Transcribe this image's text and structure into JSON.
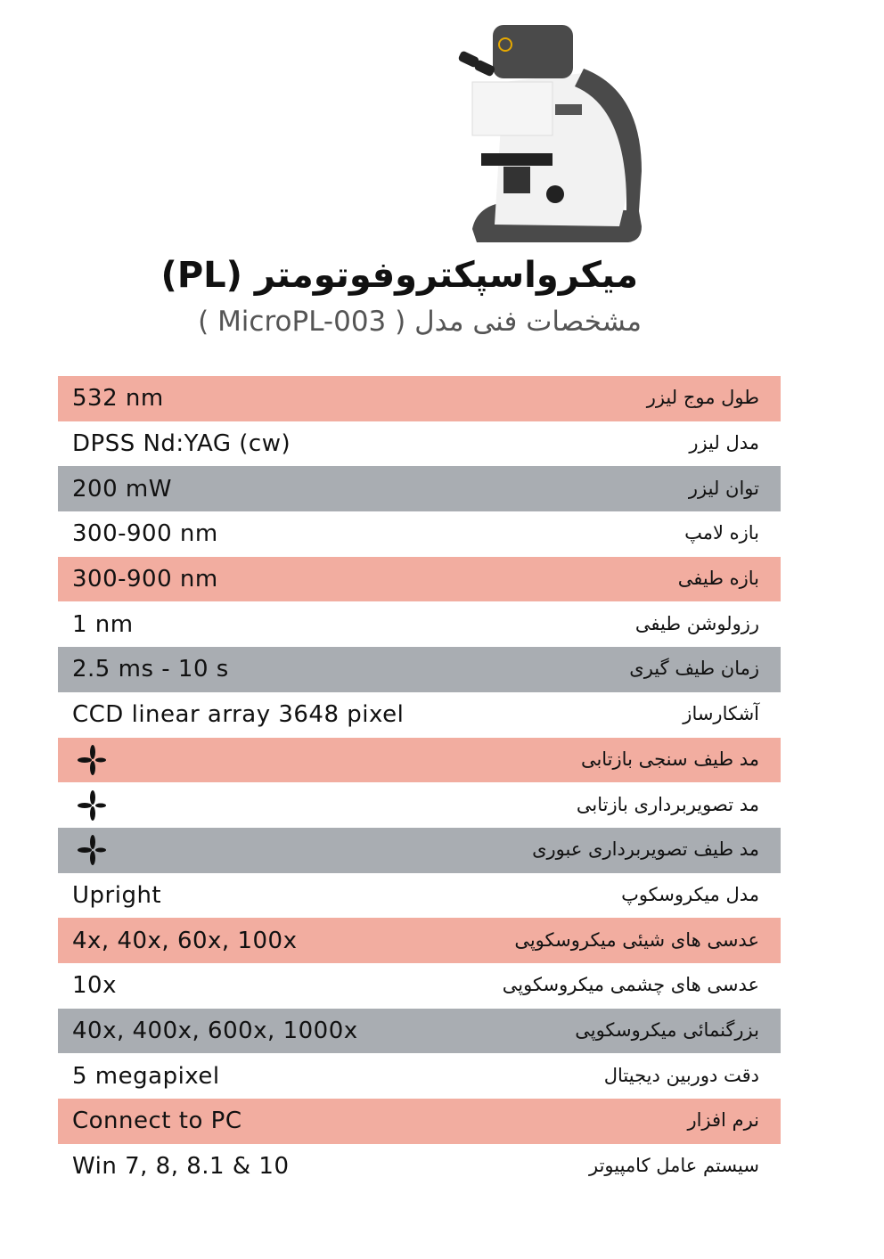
{
  "header": {
    "title": "میکرواسپکتروفوتومتر (PL)",
    "subtitle": "مشخصات فنی مدل ( MicroPL-003 )"
  },
  "colors": {
    "pink": "#f2ada0",
    "gray": "#a9adb2",
    "white": "#ffffff"
  },
  "specs": [
    {
      "label": "طول موج لیزر",
      "value": "532 nm",
      "bg": "pink"
    },
    {
      "label": "مدل لیزر",
      "value": "DPSS Nd:YAG (cw)",
      "bg": "white"
    },
    {
      "label": "توان لیزر",
      "value": "200 mW",
      "bg": "gray"
    },
    {
      "label": "بازه لامپ",
      "value": "300-900 nm",
      "bg": "white"
    },
    {
      "label": "بازه طیفی",
      "value": "300-900 nm",
      "bg": "pink"
    },
    {
      "label": "رزولوشن طیفی",
      "value": "1 nm",
      "bg": "white"
    },
    {
      "label": "زمان طیف گیری",
      "value": "2.5 ms - 10 s",
      "bg": "gray"
    },
    {
      "label": "آشکارساز",
      "value": "CCD linear array 3648 pixel",
      "bg": "white"
    },
    {
      "label": "مد  طیف سنجی بازتابی",
      "value": null,
      "icon": "check-star-icon",
      "bg": "pink"
    },
    {
      "label": "مد  تصویربرداری بازتابی",
      "value": null,
      "icon": "check-star-icon",
      "bg": "white"
    },
    {
      "label": "مد  طیف تصویربرداری عبوری",
      "value": null,
      "icon": "check-star-icon",
      "bg": "gray"
    },
    {
      "label": "مدل میکروسکوپ",
      "value": "Upright",
      "bg": "white"
    },
    {
      "label": "عدسی های شیئی میکروسکوپی",
      "value": "4x, 40x, 60x, 100x",
      "bg": "pink"
    },
    {
      "label": "عدسی های چشمی میکروسکوپی",
      "value": "10x",
      "bg": "white"
    },
    {
      "label": "بزرگنمائی میکروسکوپی",
      "value": "40x, 400x, 600x, 1000x",
      "bg": "gray"
    },
    {
      "label": "دقت دوربین دیجیتال",
      "value": "5 megapixel",
      "bg": "white"
    },
    {
      "label": "نرم افزار",
      "value": "Connect to PC",
      "bg": "pink"
    },
    {
      "label": "سیستم عامل کامپیوتر",
      "value": "Win 7, 8, 8.1 & 10",
      "bg": "white"
    }
  ]
}
